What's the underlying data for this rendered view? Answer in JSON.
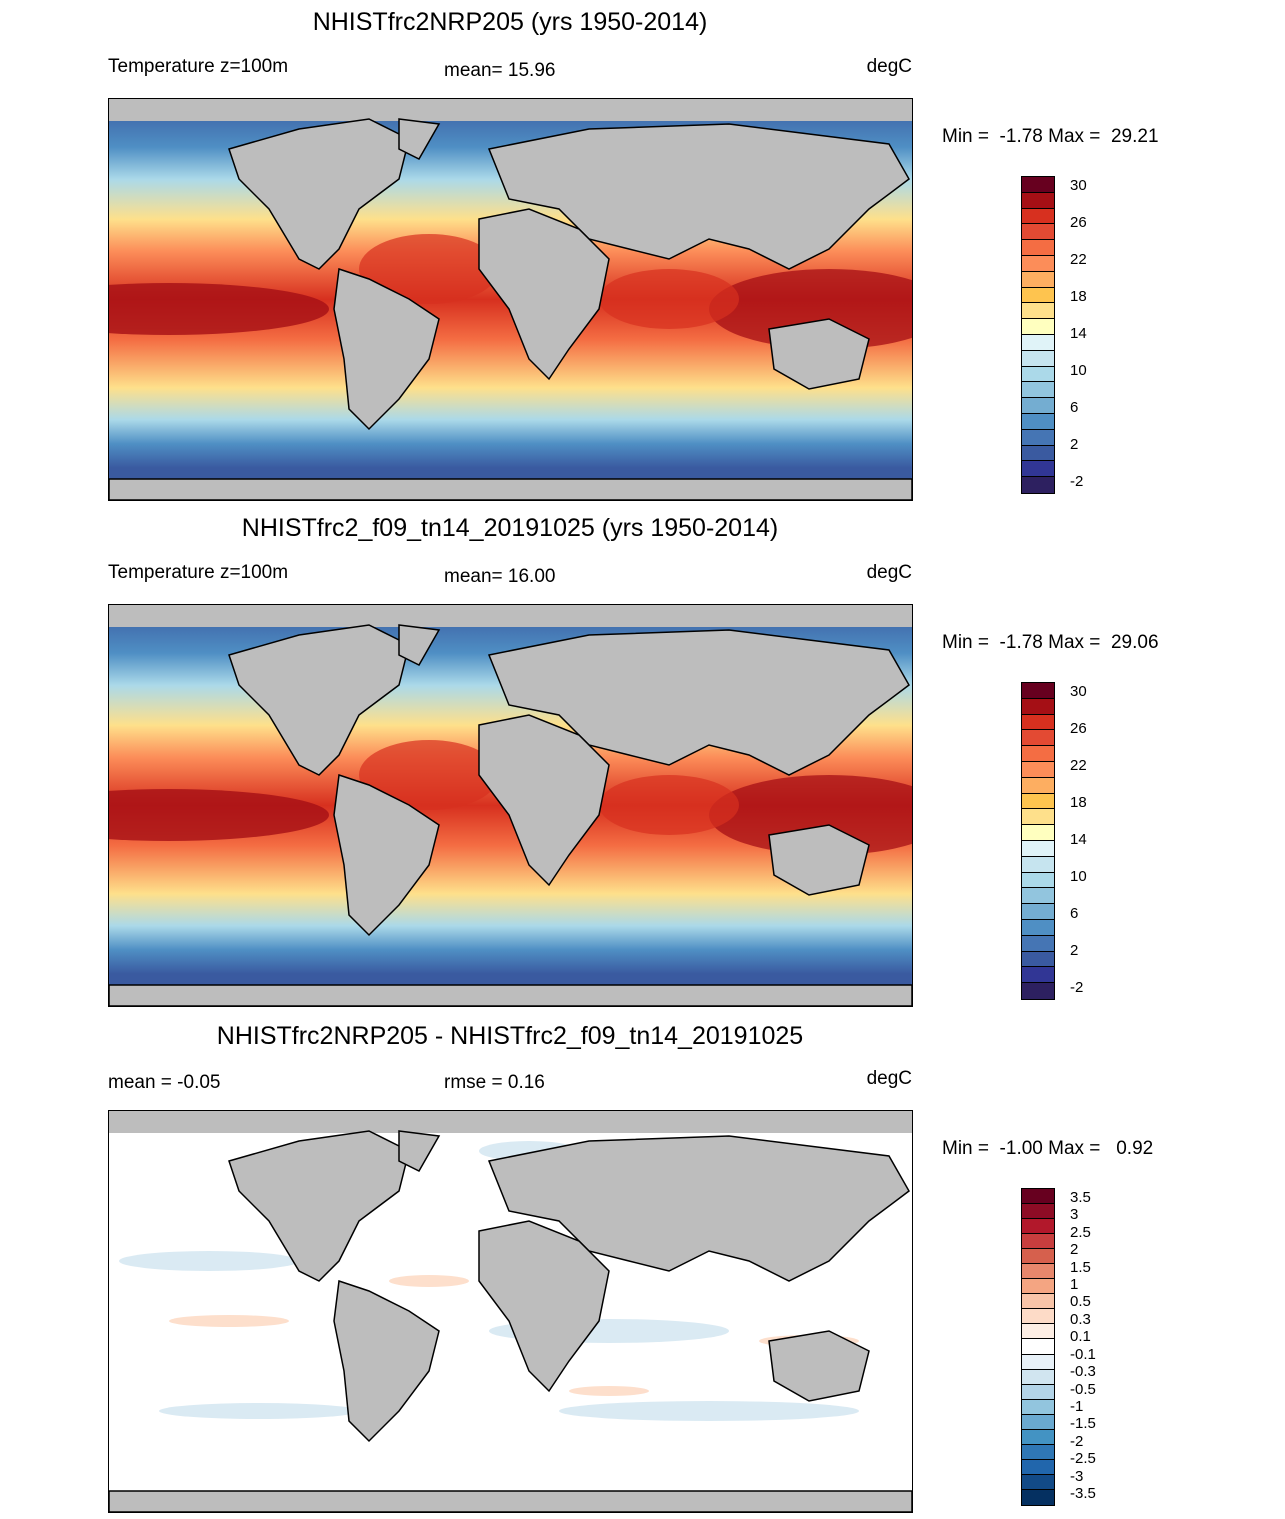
{
  "panels": [
    {
      "title": "NHISTfrc2NRP205 (yrs 1950-2014)",
      "left_label": "Temperature z=100m",
      "center_label": "mean=  15.96",
      "right_label": "degC",
      "minmax": "Min =  -1.78 Max =  29.21",
      "colorbar": {
        "colors": [
          "#67001f",
          "#a50f15",
          "#d7301f",
          "#e34a33",
          "#f46d43",
          "#fc8d59",
          "#fdae61",
          "#fec44f",
          "#fee08b",
          "#ffffbf",
          "#e0f3f8",
          "#c6e4ef",
          "#abd9e9",
          "#92c5de",
          "#74add1",
          "#4f8fc4",
          "#4575b4",
          "#3a5aa0",
          "#313695",
          "#2d2060"
        ],
        "labels": [
          "30",
          "26",
          "22",
          "18",
          "14",
          "10",
          "6",
          "2",
          "-2"
        ]
      }
    },
    {
      "title": "NHISTfrc2_f09_tn14_20191025 (yrs 1950-2014)",
      "left_label": "Temperature z=100m",
      "center_label": "mean=  16.00",
      "right_label": "degC",
      "minmax": "Min =  -1.78 Max =  29.06",
      "colorbar": {
        "colors": [
          "#67001f",
          "#a50f15",
          "#d7301f",
          "#e34a33",
          "#f46d43",
          "#fc8d59",
          "#fdae61",
          "#fec44f",
          "#fee08b",
          "#ffffbf",
          "#e0f3f8",
          "#c6e4ef",
          "#abd9e9",
          "#92c5de",
          "#74add1",
          "#4f8fc4",
          "#4575b4",
          "#3a5aa0",
          "#313695",
          "#2d2060"
        ],
        "labels": [
          "30",
          "26",
          "22",
          "18",
          "14",
          "10",
          "6",
          "2",
          "-2"
        ]
      }
    },
    {
      "title": "NHISTfrc2NRP205 - NHISTfrc2_f09_tn14_20191025",
      "left_label": "mean =  -0.05",
      "center_label": "rmse =   0.16",
      "right_label": "degC",
      "minmax": "Min =  -1.00 Max =   0.92",
      "colorbar": {
        "colors": [
          "#67001f",
          "#8e0c25",
          "#b2182b",
          "#c83e3e",
          "#d6604d",
          "#e7876c",
          "#f4a582",
          "#f8c4a8",
          "#fddbc7",
          "#fdeee4",
          "#ffffff",
          "#e8f1f8",
          "#d1e5f0",
          "#b3d4e8",
          "#92c5de",
          "#6aa9d0",
          "#4393c3",
          "#2f77b5",
          "#2166ac",
          "#124a87",
          "#053061"
        ],
        "labels": [
          "3.5",
          "3",
          "2.5",
          "2",
          "1.5",
          "1",
          "0.5",
          "0.3",
          "0.1",
          "-0.1",
          "-0.3",
          "-0.5",
          "-1",
          "-1.5",
          "-2",
          "-2.5",
          "-3",
          "-3.5"
        ]
      }
    }
  ],
  "map_colors": {
    "land": "#bdbdbd",
    "coast": "#000000",
    "diff_ocean": "#ffffff"
  }
}
